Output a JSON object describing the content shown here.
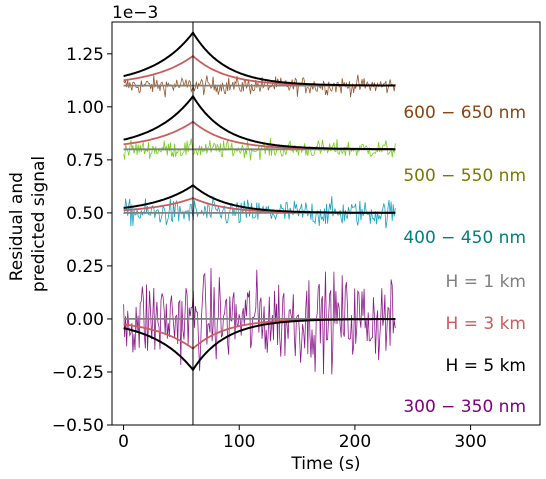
{
  "chart_data": {
    "type": "line",
    "xlabel": "Time (s)",
    "ylabel": [
      "Residual and",
      "predicted signal"
    ],
    "offset_label": "1e−3",
    "xlim": [
      -10,
      360
    ],
    "ylim": [
      -0.5,
      1.4
    ],
    "x_ticks": [
      0,
      100,
      200,
      300
    ],
    "x_tick_labels": [
      "0",
      "100",
      "200",
      "300"
    ],
    "y_ticks": [
      -0.5,
      -0.25,
      0.0,
      0.25,
      0.5,
      0.75,
      1.0,
      1.25
    ],
    "y_tick_labels": [
      "−0.50",
      "−0.25",
      "0.00",
      "0.25",
      "0.50",
      "0.75",
      "1.00",
      "1.25"
    ],
    "vline_x": 60,
    "residual_time_range": [
      0,
      235
    ],
    "bands": [
      {
        "name": "600 − 650 nm",
        "baseline": 1.1,
        "color": "#8b4513",
        "noise_amplitude": 0.03,
        "H1_peak": 0.0,
        "H3_peak": 0.14,
        "H5_peak": 0.25
      },
      {
        "name": "500 − 550 nm",
        "baseline": 0.8,
        "color": "#7a7a00",
        "noise_color": "#66cc00",
        "noise_amplitude": 0.03,
        "H1_peak": 0.0,
        "H3_peak": 0.13,
        "H5_peak": 0.25
      },
      {
        "name": "400 − 450 nm",
        "baseline": 0.5,
        "color": "#008080",
        "noise_color": "#0099bb",
        "noise_amplitude": 0.045,
        "H1_peak": 0.0,
        "H3_peak": 0.07,
        "H5_peak": 0.13
      },
      {
        "name": "300 − 350 nm",
        "baseline": 0.0,
        "color": "#800080",
        "noise_color": "#800080",
        "noise_amplitude": 0.15,
        "H1_peak": 0.0,
        "H3_peak": -0.14,
        "H5_peak": -0.24
      }
    ],
    "models": [
      {
        "name": "H = 1 km",
        "color": "#808080"
      },
      {
        "name": "H = 3 km",
        "color": "#cd5c5c"
      },
      {
        "name": "H = 5 km",
        "color": "#000000"
      }
    ]
  }
}
